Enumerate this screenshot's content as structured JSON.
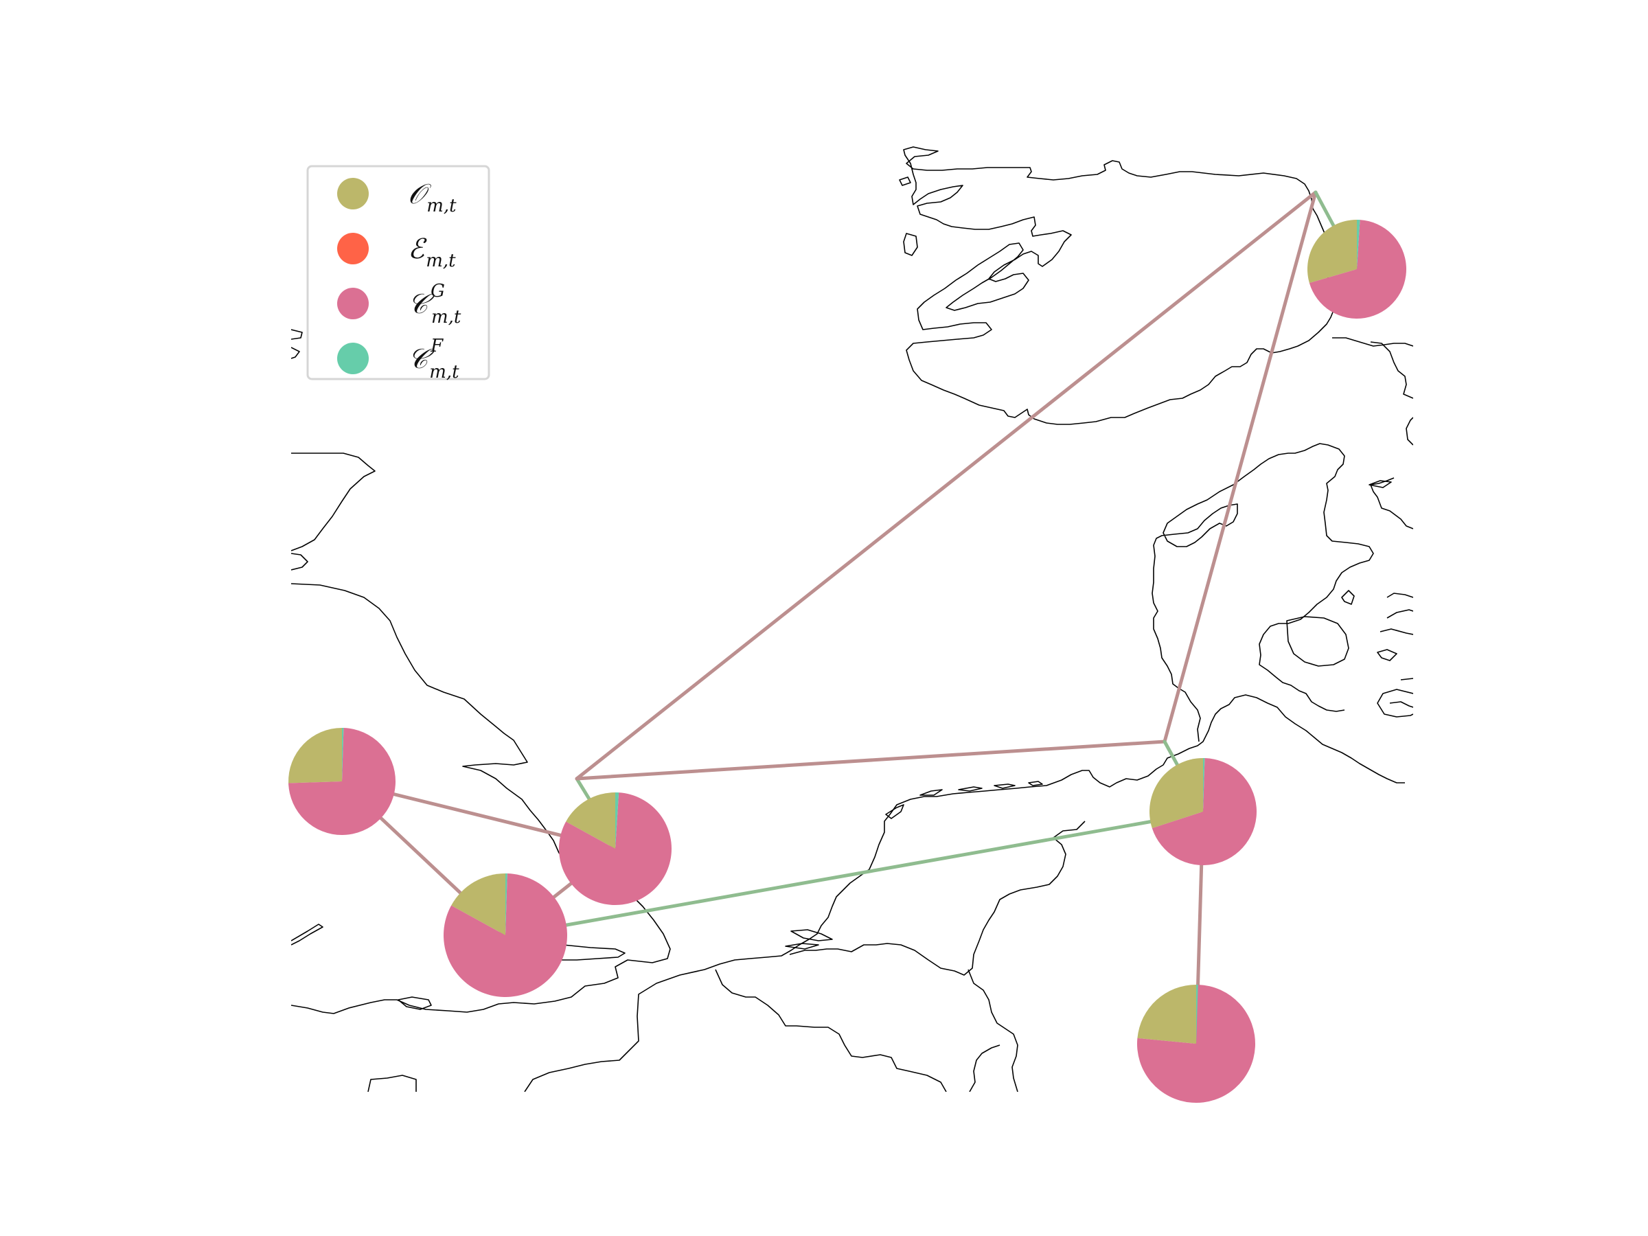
{
  "colors": {
    "O": "#bcb76a",
    "E": "#ff6347",
    "CG": "#db7093",
    "CF": "#66cdaa",
    "link_a": "#bc8f8f",
    "link_b": "#8fbc8f"
  },
  "legend": [
    {
      "key": "O",
      "base": "𝒪",
      "sub": "m,t",
      "sup": ""
    },
    {
      "key": "E",
      "base": "ℰ",
      "sub": "m,t",
      "sup": ""
    },
    {
      "key": "CG",
      "base": "𝒞",
      "sub": "m,t",
      "sup": "G"
    },
    {
      "key": "CF",
      "base": "𝒞",
      "sub": "m,t",
      "sup": "F"
    }
  ],
  "nodes": [
    {
      "id": "uk-north",
      "shares": {
        "O": 0.255,
        "E": 0.0,
        "CG": 0.74,
        "CF": 0.005
      }
    },
    {
      "id": "uk-east-coast",
      "shares": {
        "O": 0.17,
        "E": 0.0,
        "CG": 0.82,
        "CF": 0.01
      }
    },
    {
      "id": "uk-south-east",
      "shares": {
        "O": 0.17,
        "E": 0.0,
        "CG": 0.825,
        "CF": 0.005
      }
    },
    {
      "id": "germany-north",
      "shares": {
        "O": 0.3,
        "E": 0.0,
        "CG": 0.695,
        "CF": 0.005
      }
    },
    {
      "id": "germany-west",
      "shares": {
        "O": 0.235,
        "E": 0.0,
        "CG": 0.76,
        "CF": 0.005
      }
    },
    {
      "id": "norway-south",
      "shares": {
        "O": 0.295,
        "E": 0.0,
        "CG": 0.695,
        "CF": 0.01
      }
    }
  ],
  "links": [
    {
      "from": "uk-north",
      "to": "uk-east-coast",
      "type": "a"
    },
    {
      "from": "uk-north",
      "to": "uk-south-east",
      "type": "a"
    },
    {
      "from": "uk-east-coast",
      "to": "uk-south-east",
      "type": "a"
    },
    {
      "from": "uk-east-coast",
      "to": "north-sea-hub-west",
      "type": "b"
    },
    {
      "from": "north-sea-hub-west",
      "to": "north-sea-hub-north",
      "type": "a"
    },
    {
      "from": "north-sea-hub-west",
      "to": "north-sea-hub-east",
      "type": "a"
    },
    {
      "from": "north-sea-hub-east",
      "to": "north-sea-hub-north",
      "type": "a"
    },
    {
      "from": "north-sea-hub-north",
      "to": "norway-south",
      "type": "b"
    },
    {
      "from": "north-sea-hub-east",
      "to": "germany-north",
      "type": "b"
    },
    {
      "from": "uk-south-east",
      "to": "germany-north",
      "type": "b"
    },
    {
      "from": "germany-north",
      "to": "germany-west",
      "type": "a"
    }
  ]
}
